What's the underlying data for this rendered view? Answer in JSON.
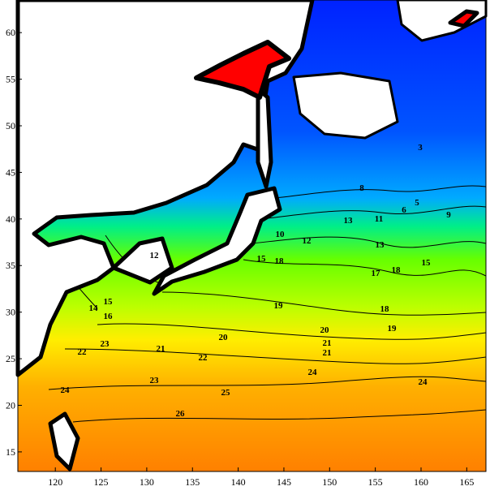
{
  "map": {
    "xlim": [
      115.9,
      167.1
    ],
    "ylim": [
      12.9,
      63.5
    ],
    "xticks": [
      120,
      125,
      130,
      135,
      140,
      145,
      150,
      155,
      160,
      165
    ],
    "yticks": [
      15,
      20,
      25,
      30,
      35,
      40,
      45,
      50,
      55,
      60
    ],
    "contour_labels": [
      "3",
      "5",
      "6",
      "8",
      "9",
      "10",
      "11",
      "12",
      "13",
      "15",
      "12",
      "13",
      "14",
      "15",
      "16",
      "17",
      "18",
      "15",
      "18",
      "19",
      "18",
      "19",
      "20",
      "21",
      "20",
      "21",
      "22",
      "23",
      "22",
      "21",
      "24",
      "23",
      "24",
      "25",
      "24",
      "26"
    ]
  }
}
